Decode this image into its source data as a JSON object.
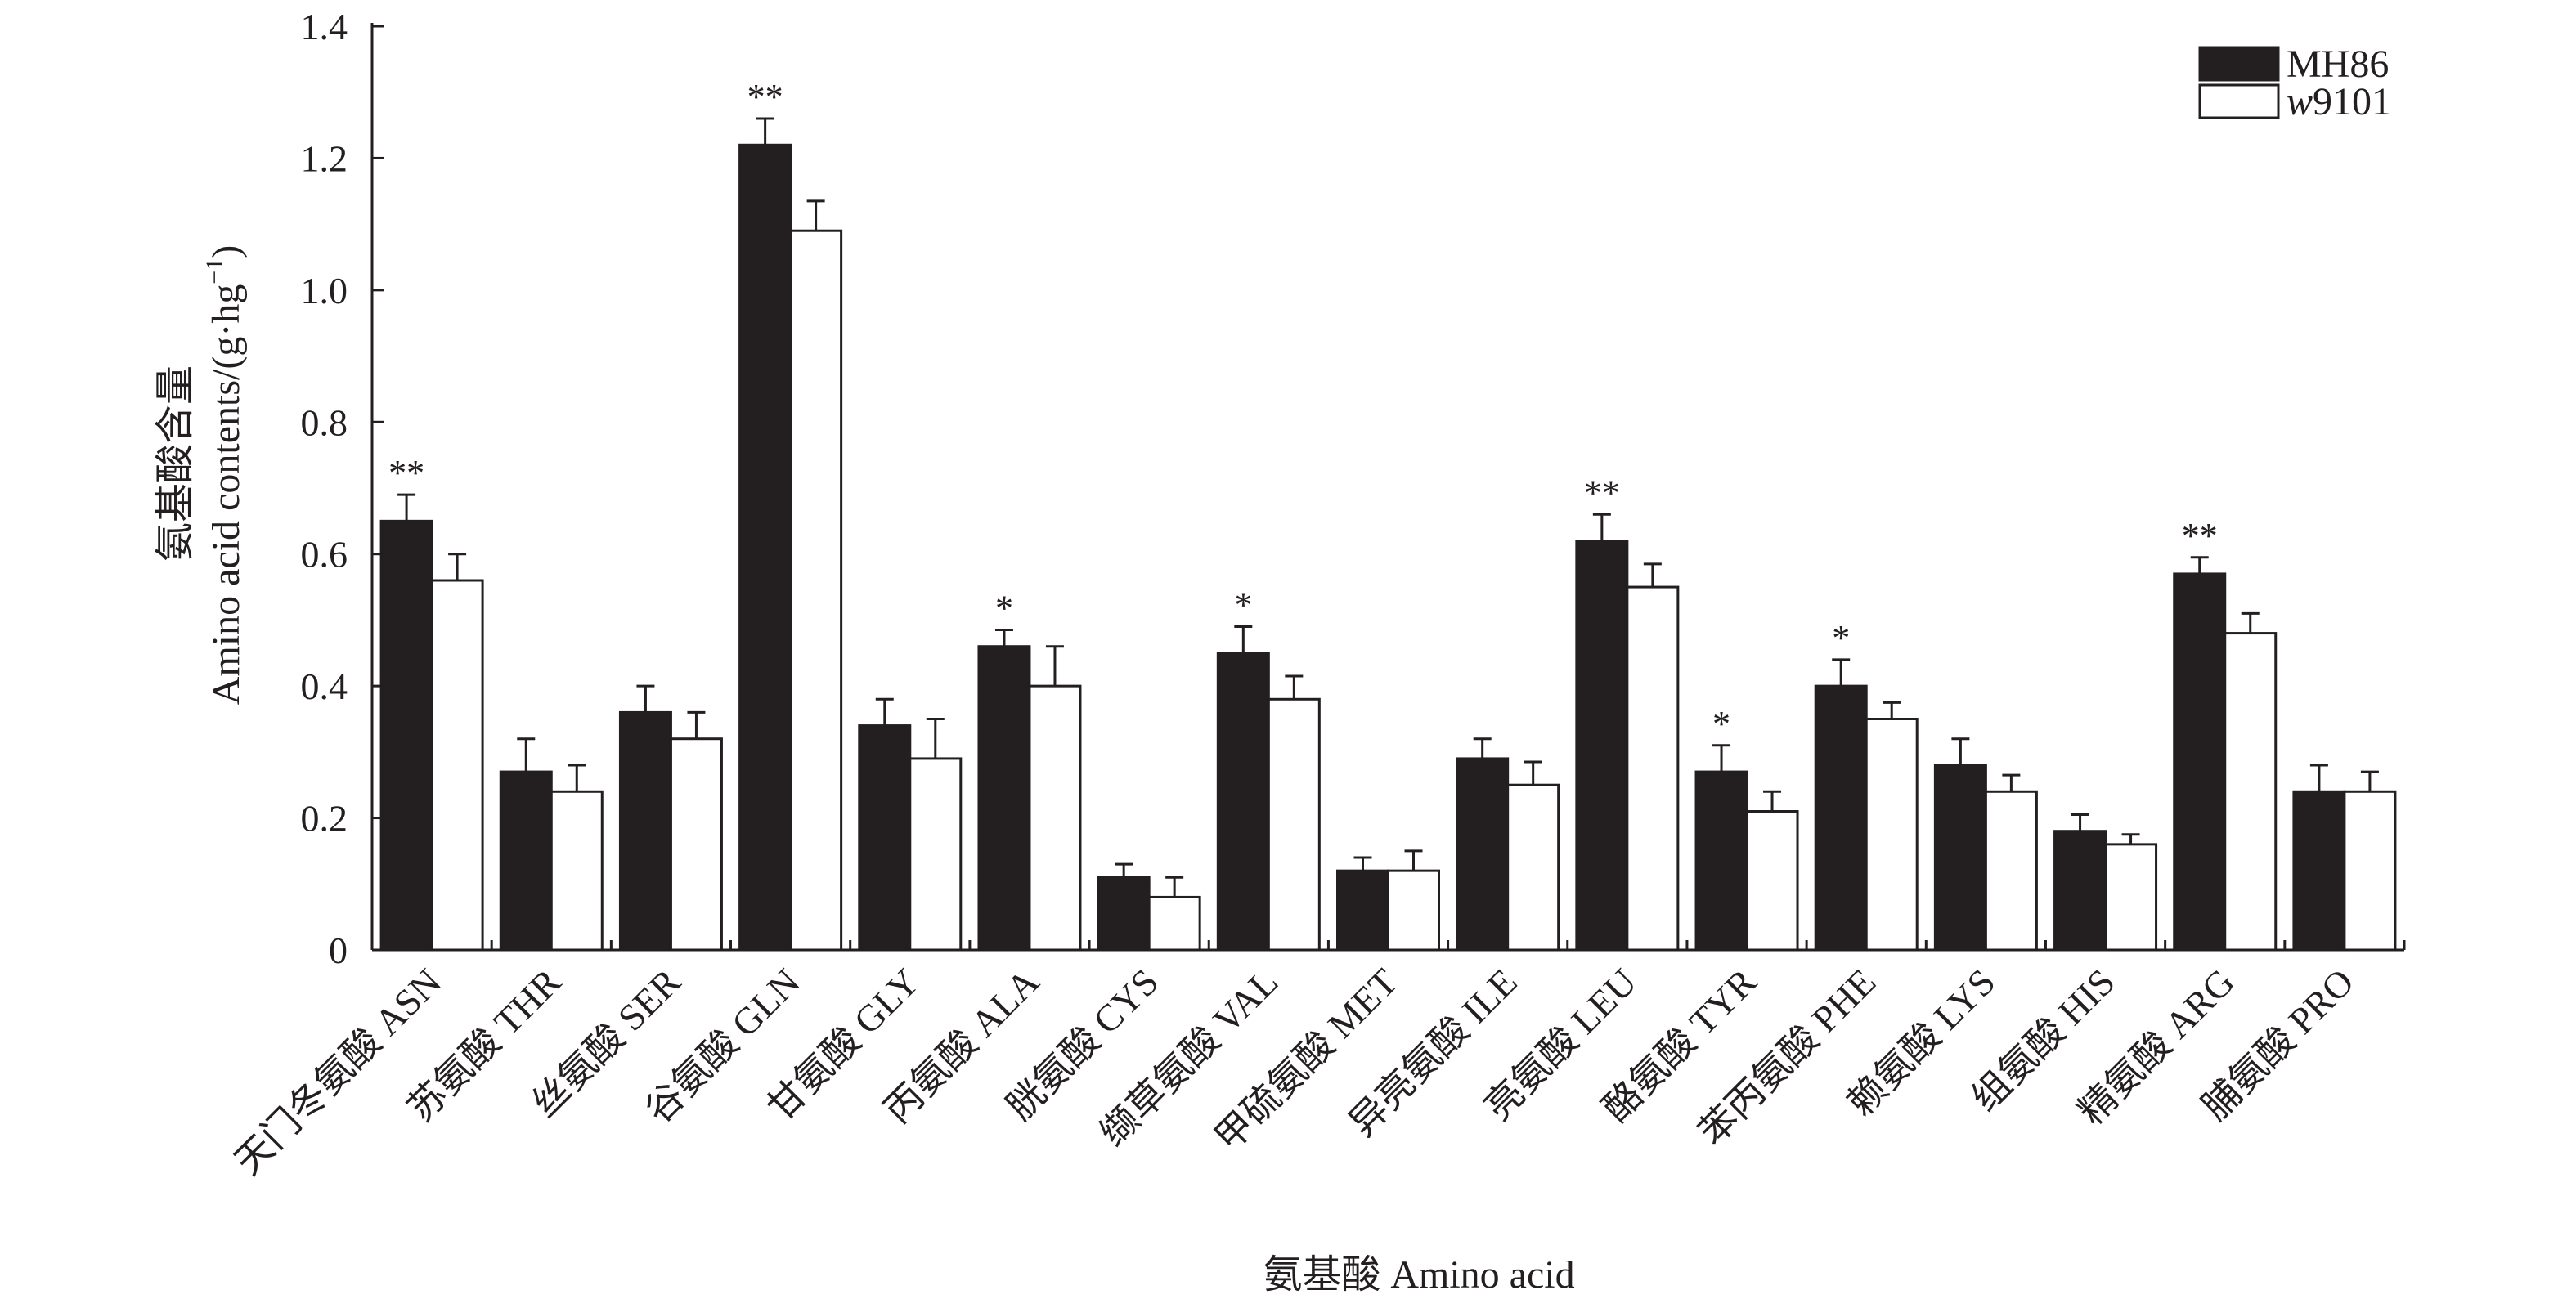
{
  "chart_data": {
    "type": "bar",
    "ylabel": "氨基酸含量 Amino acid contents/(g·hg⁻¹)",
    "ylabel_cn": "氨基酸含量",
    "ylabel_en": "Amino acid contents/(g·hg",
    "ylabel_sup": "−1",
    "ylabel_end": ")",
    "xlabel": "氨基酸 Amino acid",
    "ylim": [
      0,
      1.4
    ],
    "yticks": [
      "0",
      "0.2",
      "0.4",
      "0.6",
      "0.8",
      "1.0",
      "1.2",
      "1.4"
    ],
    "ytick_values": [
      0,
      0.2,
      0.4,
      0.6,
      0.8,
      1.0,
      1.2,
      1.4
    ],
    "legend_position": "top-right",
    "categories": [
      "天门冬氨酸 ASN",
      "苏氨酸 THR",
      "丝氨酸 SER",
      "谷氨酸 GLN",
      "甘氨酸 GLY",
      "丙氨酸 ALA",
      "胱氨酸 CYS",
      "缬草氨酸 VAL",
      "甲硫氨酸 MET",
      "异亮氨酸 ILE",
      "亮氨酸 LEU",
      "酪氨酸 TYR",
      "苯丙氨酸 PHE",
      "赖氨酸 LYS",
      "组氨酸 HIS",
      "精氨酸 ARG",
      "脯氨酸 PRO"
    ],
    "series": [
      {
        "name": "MH86",
        "color": "#231f20",
        "values": [
          0.65,
          0.27,
          0.36,
          1.22,
          0.34,
          0.46,
          0.11,
          0.45,
          0.12,
          0.29,
          0.62,
          0.27,
          0.4,
          0.28,
          0.18,
          0.57,
          0.24
        ],
        "errors": [
          0.04,
          0.05,
          0.04,
          0.04,
          0.04,
          0.025,
          0.02,
          0.04,
          0.02,
          0.03,
          0.04,
          0.04,
          0.04,
          0.04,
          0.025,
          0.025,
          0.04
        ]
      },
      {
        "name": "w9101",
        "color": "#ffffff",
        "values": [
          0.56,
          0.24,
          0.32,
          1.09,
          0.29,
          0.4,
          0.08,
          0.38,
          0.12,
          0.25,
          0.55,
          0.21,
          0.35,
          0.24,
          0.16,
          0.48,
          0.24
        ],
        "errors": [
          0.04,
          0.04,
          0.04,
          0.045,
          0.06,
          0.06,
          0.03,
          0.035,
          0.03,
          0.035,
          0.035,
          0.03,
          0.025,
          0.025,
          0.015,
          0.03,
          0.03
        ]
      }
    ],
    "significance": [
      "**",
      "",
      "",
      "**",
      "",
      "*",
      "",
      "*",
      "",
      "",
      "**",
      "*",
      "*",
      "",
      "",
      "**",
      ""
    ]
  },
  "legend": {
    "items": [
      {
        "label": "MH86",
        "italic_part": "",
        "rest": "MH86"
      },
      {
        "label": "w9101",
        "italic_part": "w",
        "rest": "9101"
      }
    ]
  }
}
